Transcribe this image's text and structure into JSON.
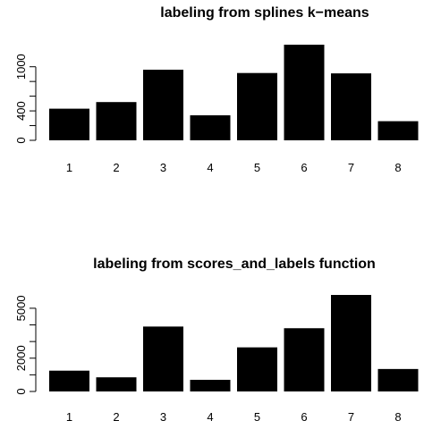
{
  "chart_data": [
    {
      "type": "bar",
      "title": "labeling from splines k−means",
      "categories": [
        "1",
        "2",
        "3",
        "4",
        "5",
        "6",
        "7",
        "8"
      ],
      "values": [
        430,
        520,
        960,
        340,
        915,
        1300,
        910,
        260
      ],
      "ylim": [
        0,
        1300
      ],
      "yticks": [
        "0",
        "400",
        "1000"
      ],
      "ytick_values": [
        0,
        200,
        400,
        600,
        800,
        1000
      ],
      "color": "#000000"
    },
    {
      "type": "bar",
      "title": "labeling from scores_and_labels function",
      "categories": [
        "1",
        "2",
        "3",
        "4",
        "5",
        "6",
        "7",
        "8"
      ],
      "values": [
        1250,
        850,
        3900,
        700,
        2650,
        3800,
        5800,
        1350
      ],
      "ylim": [
        0,
        5800
      ],
      "yticks": [
        "0",
        "2000",
        "5000"
      ],
      "ytick_values": [
        0,
        1000,
        2000,
        3000,
        4000,
        5000
      ],
      "color": "#000000"
    }
  ]
}
